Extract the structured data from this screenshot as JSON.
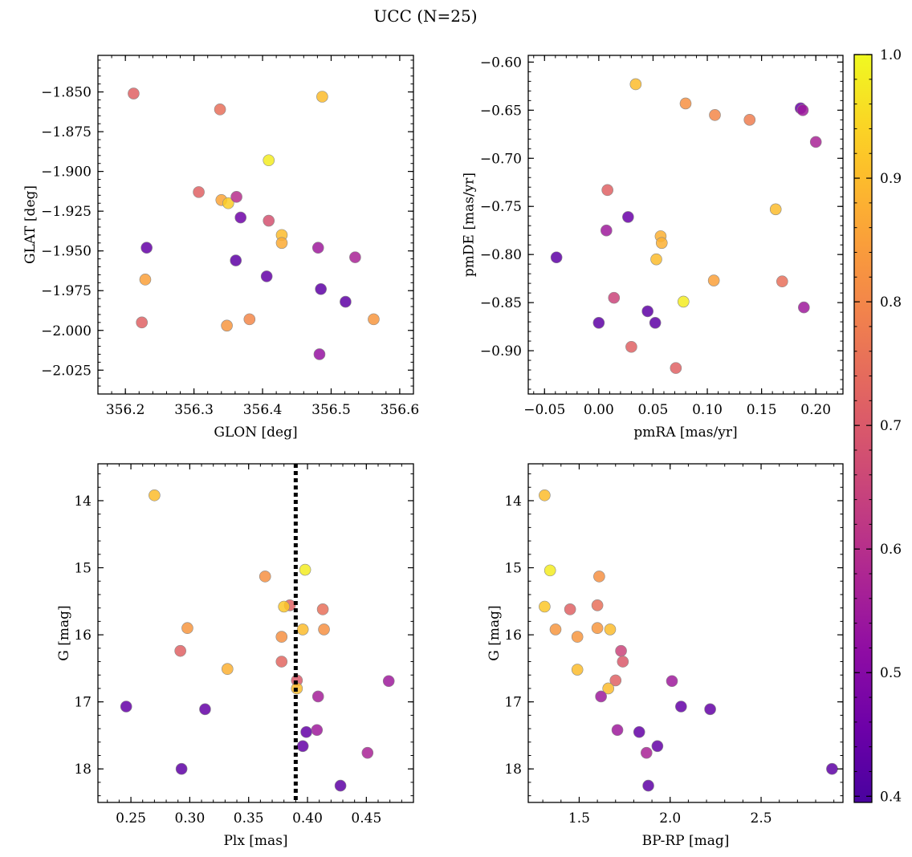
{
  "figure": {
    "title": "UCC (N=25)"
  },
  "colorbar": {
    "range": [
      0.395,
      1.0
    ],
    "ticks": [
      "0.4",
      "0.5",
      "0.6",
      "0.7",
      "0.8",
      "0.9",
      "1.0"
    ],
    "tick_values": [
      0.4,
      0.5,
      0.6,
      0.7,
      0.8,
      0.9,
      1.0
    ],
    "colormap": "plasma"
  },
  "chart_data": [
    {
      "type": "scatter",
      "panel": "top-left",
      "xlabel": "GLON [deg]",
      "ylabel": "GLAT [deg]",
      "xlim": [
        356.16,
        356.62
      ],
      "ylim": [
        -2.04,
        -1.827
      ],
      "y_inverted": false,
      "xticks": [
        356.2,
        356.3,
        356.4,
        356.5,
        356.6
      ],
      "xtick_labels": [
        "356.2",
        "356.3",
        "356.4",
        "356.5",
        "356.6"
      ],
      "xminor": 0.02,
      "yticks": [
        -1.85,
        -1.875,
        -1.9,
        -1.925,
        -1.95,
        -1.975,
        -2.0,
        -2.025
      ],
      "ytick_labels": [
        "−1.850",
        "−1.875",
        "−1.900",
        "−1.925",
        "−1.950",
        "−1.975",
        "−2.000",
        "−2.025"
      ],
      "yminor": 0.005,
      "points": [
        {
          "x": 356.212,
          "y": -1.851,
          "c": 0.72
        },
        {
          "x": 356.338,
          "y": -1.861,
          "c": 0.75
        },
        {
          "x": 356.487,
          "y": -1.853,
          "c": 0.9
        },
        {
          "x": 356.409,
          "y": -1.893,
          "c": 0.98
        },
        {
          "x": 356.307,
          "y": -1.913,
          "c": 0.72
        },
        {
          "x": 356.34,
          "y": -1.918,
          "c": 0.86
        },
        {
          "x": 356.35,
          "y": -1.92,
          "c": 0.93
        },
        {
          "x": 356.362,
          "y": -1.916,
          "c": 0.6
        },
        {
          "x": 356.368,
          "y": -1.929,
          "c": 0.46
        },
        {
          "x": 356.409,
          "y": -1.931,
          "c": 0.68
        },
        {
          "x": 356.428,
          "y": -1.94,
          "c": 0.9
        },
        {
          "x": 356.428,
          "y": -1.945,
          "c": 0.87
        },
        {
          "x": 356.231,
          "y": -1.948,
          "c": 0.44
        },
        {
          "x": 356.481,
          "y": -1.948,
          "c": 0.55
        },
        {
          "x": 356.535,
          "y": -1.954,
          "c": 0.57
        },
        {
          "x": 356.361,
          "y": -1.956,
          "c": 0.43
        },
        {
          "x": 356.406,
          "y": -1.966,
          "c": 0.44
        },
        {
          "x": 356.229,
          "y": -1.968,
          "c": 0.85
        },
        {
          "x": 356.485,
          "y": -1.974,
          "c": 0.43
        },
        {
          "x": 356.521,
          "y": -1.982,
          "c": 0.43
        },
        {
          "x": 356.562,
          "y": -1.993,
          "c": 0.83
        },
        {
          "x": 356.381,
          "y": -1.993,
          "c": 0.8
        },
        {
          "x": 356.224,
          "y": -1.995,
          "c": 0.72
        },
        {
          "x": 356.348,
          "y": -1.997,
          "c": 0.83
        },
        {
          "x": 356.483,
          "y": -2.015,
          "c": 0.53
        }
      ]
    },
    {
      "type": "scatter",
      "panel": "top-right",
      "xlabel": "pmRA [mas/yr]",
      "ylabel": "pmDE [mas/yr]",
      "xlim": [
        -0.065,
        0.225
      ],
      "ylim": [
        -0.945,
        -0.593
      ],
      "y_inverted": false,
      "xticks": [
        -0.05,
        0.0,
        0.05,
        0.1,
        0.15,
        0.2
      ],
      "xtick_labels": [
        "−0.05",
        "0.00",
        "0.05",
        "0.10",
        "0.15",
        "0.20"
      ],
      "xminor": 0.01,
      "yticks": [
        -0.6,
        -0.65,
        -0.7,
        -0.75,
        -0.8,
        -0.85,
        -0.9
      ],
      "ytick_labels": [
        "−0.60",
        "−0.65",
        "−0.70",
        "−0.75",
        "−0.80",
        "−0.85",
        "−0.90"
      ],
      "yminor": 0.01,
      "points": [
        {
          "x": 0.034,
          "y": -0.623,
          "c": 0.9
        },
        {
          "x": 0.08,
          "y": -0.643,
          "c": 0.82
        },
        {
          "x": 0.107,
          "y": -0.655,
          "c": 0.8
        },
        {
          "x": 0.139,
          "y": -0.66,
          "c": 0.78
        },
        {
          "x": 0.186,
          "y": -0.648,
          "c": 0.45
        },
        {
          "x": 0.188,
          "y": -0.65,
          "c": 0.55
        },
        {
          "x": 0.2,
          "y": -0.683,
          "c": 0.57
        },
        {
          "x": 0.008,
          "y": -0.733,
          "c": 0.72
        },
        {
          "x": 0.163,
          "y": -0.753,
          "c": 0.9
        },
        {
          "x": 0.027,
          "y": -0.761,
          "c": 0.45
        },
        {
          "x": 0.007,
          "y": -0.775,
          "c": 0.55
        },
        {
          "x": 0.057,
          "y": -0.781,
          "c": 0.88
        },
        {
          "x": 0.058,
          "y": -0.788,
          "c": 0.88
        },
        {
          "x": 0.053,
          "y": -0.805,
          "c": 0.9
        },
        {
          "x": -0.039,
          "y": -0.803,
          "c": 0.43
        },
        {
          "x": 0.106,
          "y": -0.827,
          "c": 0.85
        },
        {
          "x": 0.169,
          "y": -0.828,
          "c": 0.75
        },
        {
          "x": 0.014,
          "y": -0.845,
          "c": 0.65
        },
        {
          "x": 0.078,
          "y": -0.849,
          "c": 0.98
        },
        {
          "x": 0.189,
          "y": -0.855,
          "c": 0.55
        },
        {
          "x": 0.045,
          "y": -0.859,
          "c": 0.43
        },
        {
          "x": 0.0,
          "y": -0.871,
          "c": 0.43
        },
        {
          "x": 0.052,
          "y": -0.871,
          "c": 0.43
        },
        {
          "x": 0.03,
          "y": -0.896,
          "c": 0.72
        },
        {
          "x": 0.071,
          "y": -0.918,
          "c": 0.72
        }
      ]
    },
    {
      "type": "scatter",
      "panel": "bottom-left",
      "xlabel": "Plx [mas]",
      "ylabel": "G [mag]",
      "xlim": [
        0.222,
        0.49
      ],
      "ylim": [
        18.5,
        13.45
      ],
      "y_inverted": true,
      "xticks": [
        0.25,
        0.3,
        0.35,
        0.4,
        0.45
      ],
      "xtick_labels": [
        "0.25",
        "0.30",
        "0.35",
        "0.40",
        "0.45"
      ],
      "xminor": 0.01,
      "yticks": [
        14,
        15,
        16,
        17,
        18
      ],
      "ytick_labels": [
        "14",
        "15",
        "16",
        "17",
        "18"
      ],
      "yminor": 0.2,
      "vline": {
        "x": 0.39,
        "style": "dotted"
      },
      "points": [
        {
          "x": 0.27,
          "y": 13.92,
          "c": 0.9
        },
        {
          "x": 0.398,
          "y": 15.03,
          "c": 0.98
        },
        {
          "x": 0.364,
          "y": 15.13,
          "c": 0.82
        },
        {
          "x": 0.385,
          "y": 15.56,
          "c": 0.72
        },
        {
          "x": 0.38,
          "y": 15.58,
          "c": 0.92
        },
        {
          "x": 0.413,
          "y": 15.62,
          "c": 0.75
        },
        {
          "x": 0.298,
          "y": 15.9,
          "c": 0.83
        },
        {
          "x": 0.396,
          "y": 15.92,
          "c": 0.9
        },
        {
          "x": 0.414,
          "y": 15.92,
          "c": 0.82
        },
        {
          "x": 0.378,
          "y": 16.03,
          "c": 0.82
        },
        {
          "x": 0.292,
          "y": 16.24,
          "c": 0.72
        },
        {
          "x": 0.378,
          "y": 16.4,
          "c": 0.73
        },
        {
          "x": 0.332,
          "y": 16.51,
          "c": 0.88
        },
        {
          "x": 0.391,
          "y": 16.68,
          "c": 0.7
        },
        {
          "x": 0.469,
          "y": 16.69,
          "c": 0.55
        },
        {
          "x": 0.391,
          "y": 16.8,
          "c": 0.9
        },
        {
          "x": 0.409,
          "y": 16.92,
          "c": 0.56
        },
        {
          "x": 0.246,
          "y": 17.07,
          "c": 0.44
        },
        {
          "x": 0.313,
          "y": 17.11,
          "c": 0.44
        },
        {
          "x": 0.408,
          "y": 17.42,
          "c": 0.55
        },
        {
          "x": 0.399,
          "y": 17.45,
          "c": 0.44
        },
        {
          "x": 0.396,
          "y": 17.66,
          "c": 0.44
        },
        {
          "x": 0.451,
          "y": 17.76,
          "c": 0.57
        },
        {
          "x": 0.293,
          "y": 18.0,
          "c": 0.43
        },
        {
          "x": 0.428,
          "y": 18.25,
          "c": 0.43
        }
      ]
    },
    {
      "type": "scatter",
      "panel": "bottom-right",
      "xlabel": "BP-RP [mag]",
      "ylabel": "G [mag]",
      "xlim": [
        1.22,
        2.95
      ],
      "ylim": [
        18.5,
        13.45
      ],
      "y_inverted": true,
      "xticks": [
        1.5,
        2.0,
        2.5
      ],
      "xtick_labels": [
        "1.5",
        "2.0",
        "2.5"
      ],
      "xminor": 0.1,
      "yticks": [
        14,
        15,
        16,
        17,
        18
      ],
      "ytick_labels": [
        "14",
        "15",
        "16",
        "17",
        "18"
      ],
      "yminor": 0.2,
      "points": [
        {
          "x": 1.31,
          "y": 13.92,
          "c": 0.9
        },
        {
          "x": 1.34,
          "y": 15.04,
          "c": 0.98
        },
        {
          "x": 1.61,
          "y": 15.13,
          "c": 0.82
        },
        {
          "x": 1.31,
          "y": 15.58,
          "c": 0.92
        },
        {
          "x": 1.6,
          "y": 15.56,
          "c": 0.75
        },
        {
          "x": 1.45,
          "y": 15.62,
          "c": 0.72
        },
        {
          "x": 1.37,
          "y": 15.92,
          "c": 0.83
        },
        {
          "x": 1.6,
          "y": 15.9,
          "c": 0.83
        },
        {
          "x": 1.67,
          "y": 15.92,
          "c": 0.9
        },
        {
          "x": 1.49,
          "y": 16.03,
          "c": 0.83
        },
        {
          "x": 1.73,
          "y": 16.24,
          "c": 0.65
        },
        {
          "x": 1.74,
          "y": 16.4,
          "c": 0.7
        },
        {
          "x": 1.49,
          "y": 16.52,
          "c": 0.9
        },
        {
          "x": 1.7,
          "y": 16.68,
          "c": 0.72
        },
        {
          "x": 2.01,
          "y": 16.69,
          "c": 0.55
        },
        {
          "x": 1.66,
          "y": 16.8,
          "c": 0.9
        },
        {
          "x": 1.62,
          "y": 16.92,
          "c": 0.55
        },
        {
          "x": 2.06,
          "y": 17.07,
          "c": 0.44
        },
        {
          "x": 2.22,
          "y": 17.11,
          "c": 0.44
        },
        {
          "x": 1.71,
          "y": 17.42,
          "c": 0.55
        },
        {
          "x": 1.83,
          "y": 17.45,
          "c": 0.44
        },
        {
          "x": 1.93,
          "y": 17.66,
          "c": 0.44
        },
        {
          "x": 1.87,
          "y": 17.76,
          "c": 0.57
        },
        {
          "x": 2.89,
          "y": 18.0,
          "c": 0.43
        },
        {
          "x": 1.88,
          "y": 18.25,
          "c": 0.43
        }
      ]
    }
  ]
}
